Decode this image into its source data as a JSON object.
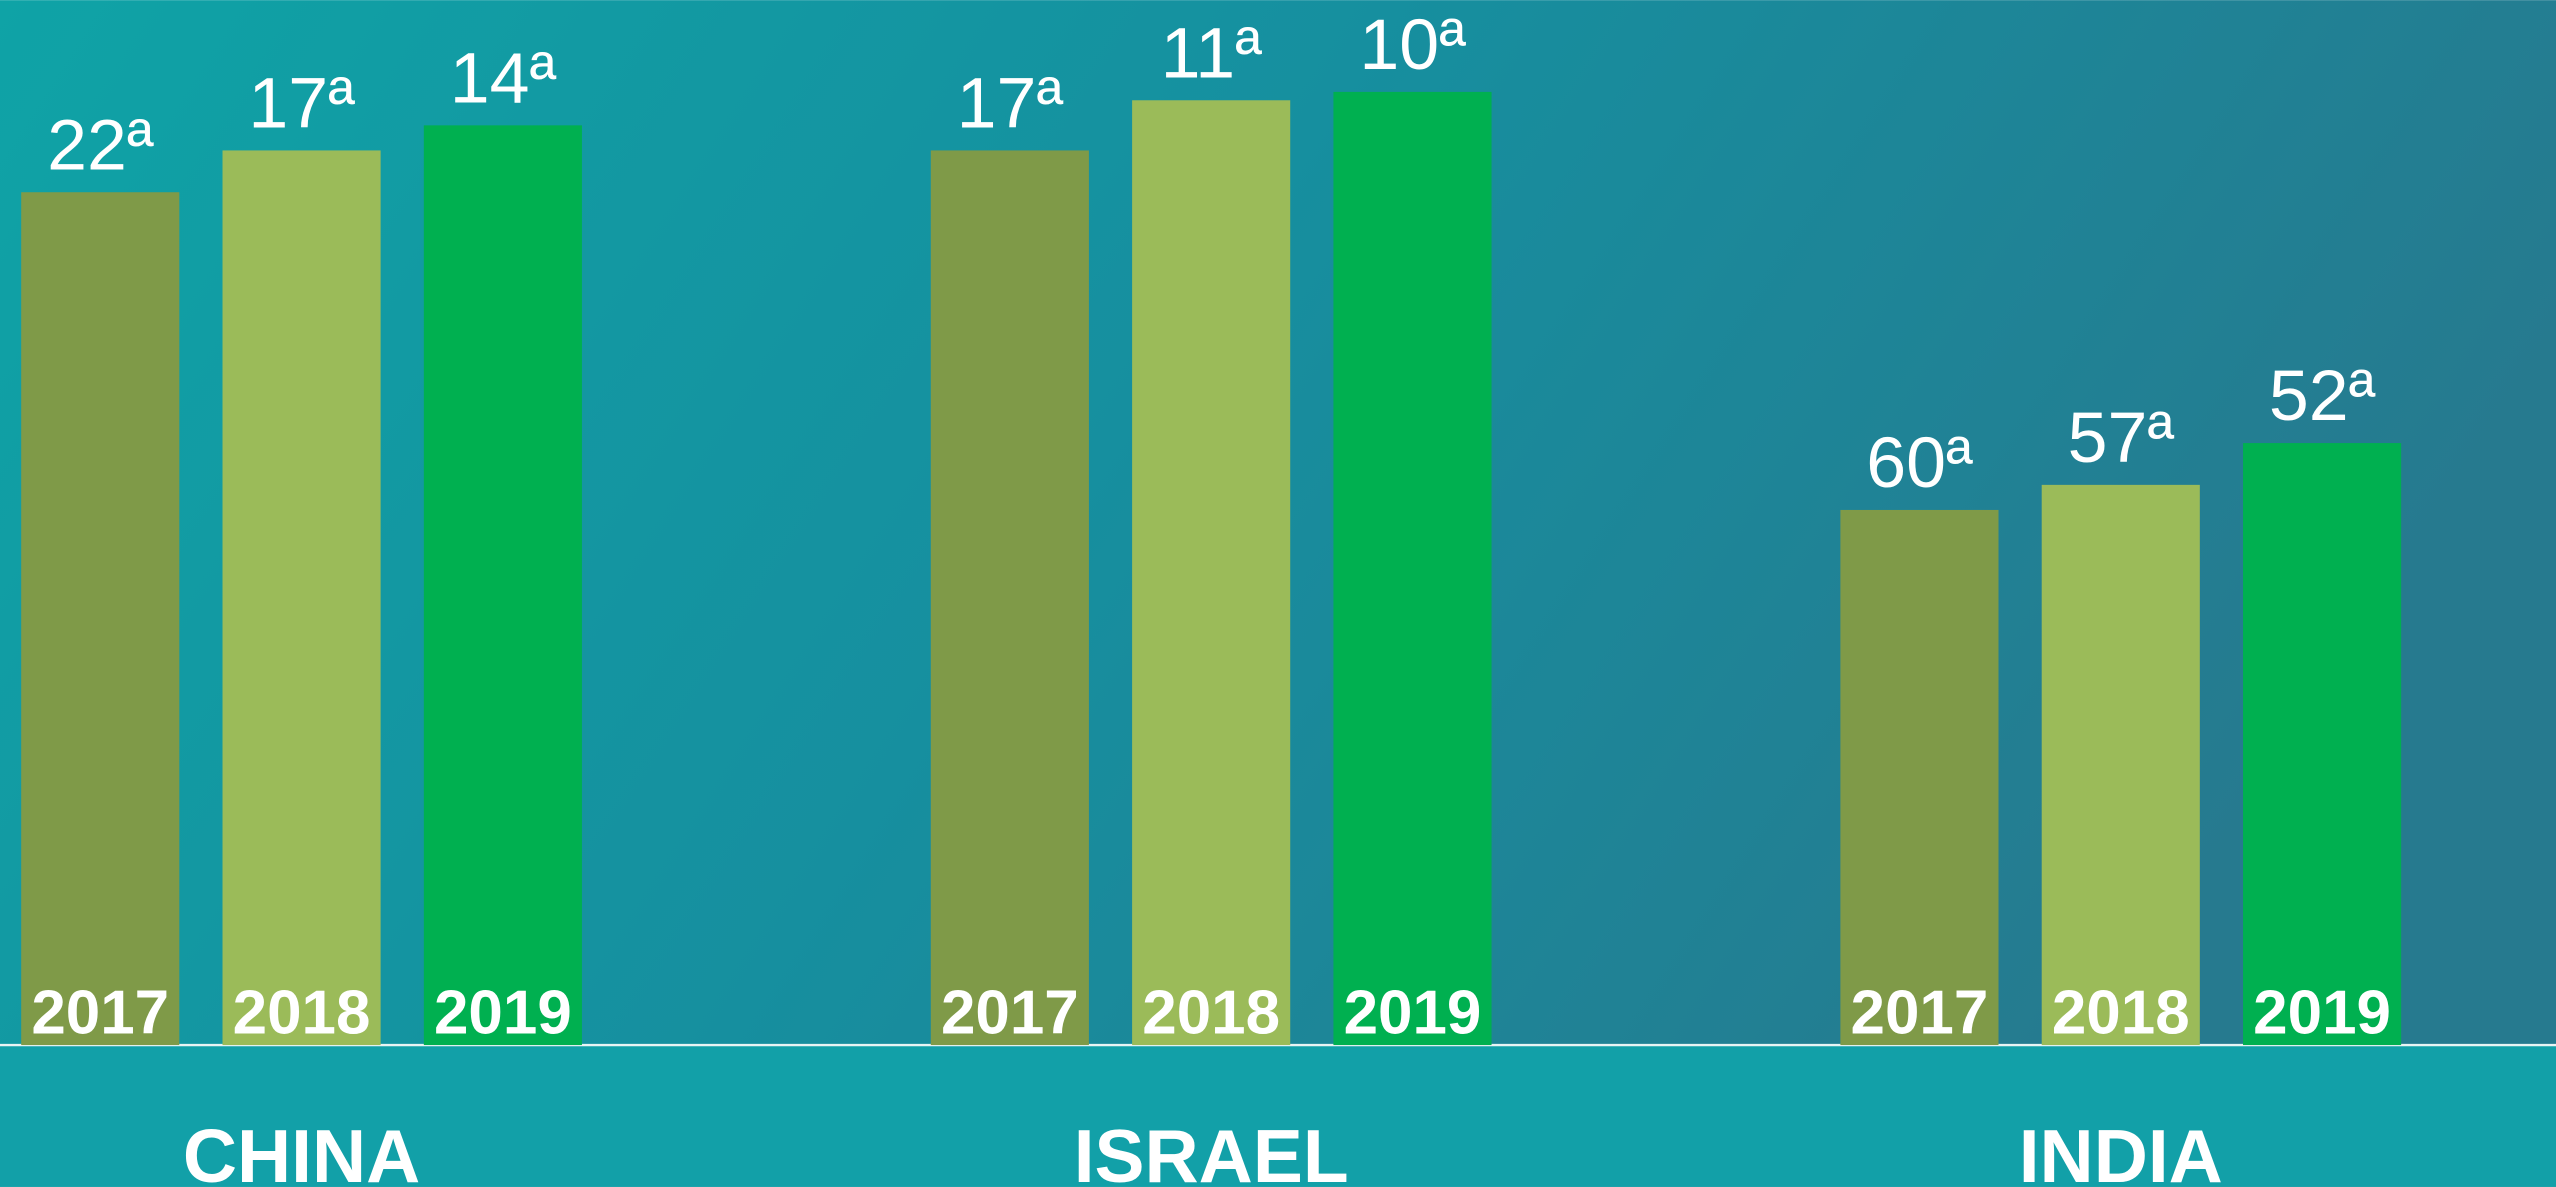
{
  "chart_data": {
    "type": "bar",
    "categories": [
      "CHINA",
      "ISRAEL",
      "INDIA"
    ],
    "series": [
      {
        "name": "2017",
        "color": "#7f9a48",
        "values": [
          22,
          17,
          60
        ],
        "value_labels": [
          "22ª",
          "17ª",
          "60ª"
        ]
      },
      {
        "name": "2018",
        "color": "#9bbb59",
        "values": [
          17,
          11,
          57
        ],
        "value_labels": [
          "17ª",
          "11ª",
          "57ª"
        ]
      },
      {
        "name": "2019",
        "color": "#00b050",
        "values": [
          14,
          10,
          52
        ],
        "value_labels": [
          "14ª",
          "10ª",
          "52ª"
        ]
      }
    ],
    "ylim": [
      124,
      0
    ]
  }
}
